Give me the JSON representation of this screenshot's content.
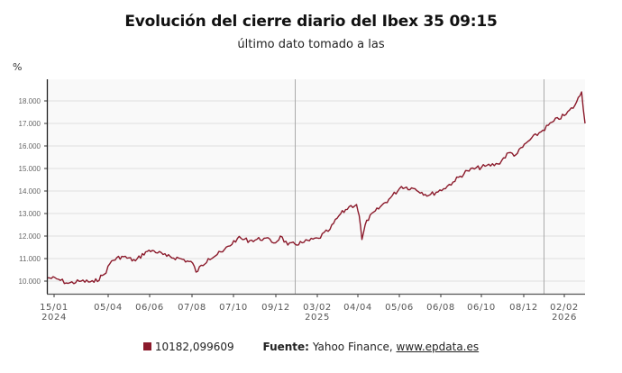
{
  "header": {
    "title": "Evolución del cierre diario del Ibex 35 09:15",
    "subtitle": "último dato tomado a las",
    "unit_label": "%"
  },
  "legend": {
    "series_value": "10182,099609",
    "series_color": "#8b1a2b",
    "source_label": "Fuente:",
    "source_text": "Yahoo Finance,",
    "source_link": "www.epdata.es"
  },
  "chart_data": {
    "type": "line",
    "title": "Evolución del cierre diario del Ibex 35 09:15",
    "subtitle": "último dato tomado a las",
    "xlabel": "",
    "ylabel": "%",
    "ylim": [
      9500,
      19000
    ],
    "grid": true,
    "legend_position": "bottom",
    "y_ticks": [
      "10.000",
      "11.000",
      "12.000",
      "13.000",
      "14.000",
      "15.000",
      "16.000",
      "17.000",
      "18.000"
    ],
    "x_ticks": [
      {
        "label": "15/01",
        "year": "2024"
      },
      {
        "label": "05/04",
        "year": ""
      },
      {
        "label": "06/06",
        "year": ""
      },
      {
        "label": "07/08",
        "year": ""
      },
      {
        "label": "07/10",
        "year": ""
      },
      {
        "label": "09/12",
        "year": ""
      },
      {
        "label": "03/02",
        "year": "2025"
      },
      {
        "label": "04/04",
        "year": ""
      },
      {
        "label": "05/06",
        "year": ""
      },
      {
        "label": "06/08",
        "year": ""
      },
      {
        "label": "06/10",
        "year": ""
      },
      {
        "label": "08/12",
        "year": ""
      },
      {
        "label": "02/02",
        "year": "2026"
      }
    ],
    "series": [
      {
        "name": "10182,099609",
        "color": "#8b1a2b",
        "x": [
          "2024-01-02",
          "2024-01-15",
          "2024-02-01",
          "2024-02-20",
          "2024-03-10",
          "2024-03-25",
          "2024-04-05",
          "2024-04-20",
          "2024-05-10",
          "2024-05-25",
          "2024-06-06",
          "2024-06-25",
          "2024-07-15",
          "2024-08-02",
          "2024-08-07",
          "2024-08-25",
          "2024-09-15",
          "2024-10-07",
          "2024-10-25",
          "2024-11-15",
          "2024-12-02",
          "2024-12-09",
          "2024-12-20",
          "2025-01-10",
          "2025-02-03",
          "2025-02-20",
          "2025-03-05",
          "2025-03-20",
          "2025-03-31",
          "2025-04-04",
          "2025-04-08",
          "2025-04-15",
          "2025-05-05",
          "2025-05-20",
          "2025-06-05",
          "2025-06-25",
          "2025-07-15",
          "2025-08-06",
          "2025-08-20",
          "2025-09-10",
          "2025-10-06",
          "2025-10-25",
          "2025-11-10",
          "2025-11-20",
          "2025-12-08",
          "2025-12-30",
          "2026-01-15",
          "2026-02-02",
          "2026-02-15",
          "2026-02-25",
          "2026-03-02"
        ],
        "values": [
          10150,
          10100,
          9900,
          10000,
          9950,
          10300,
          10900,
          11100,
          10900,
          11300,
          11350,
          11100,
          11000,
          10800,
          10400,
          11000,
          11300,
          11900,
          11800,
          11900,
          11700,
          12000,
          11600,
          11700,
          11900,
          12300,
          12900,
          13300,
          13400,
          12900,
          11850,
          12700,
          13300,
          13700,
          14200,
          14100,
          13800,
          14100,
          14400,
          14900,
          15100,
          15200,
          15700,
          15600,
          16200,
          16700,
          17100,
          17400,
          17800,
          18400,
          17000
        ]
      }
    ]
  }
}
